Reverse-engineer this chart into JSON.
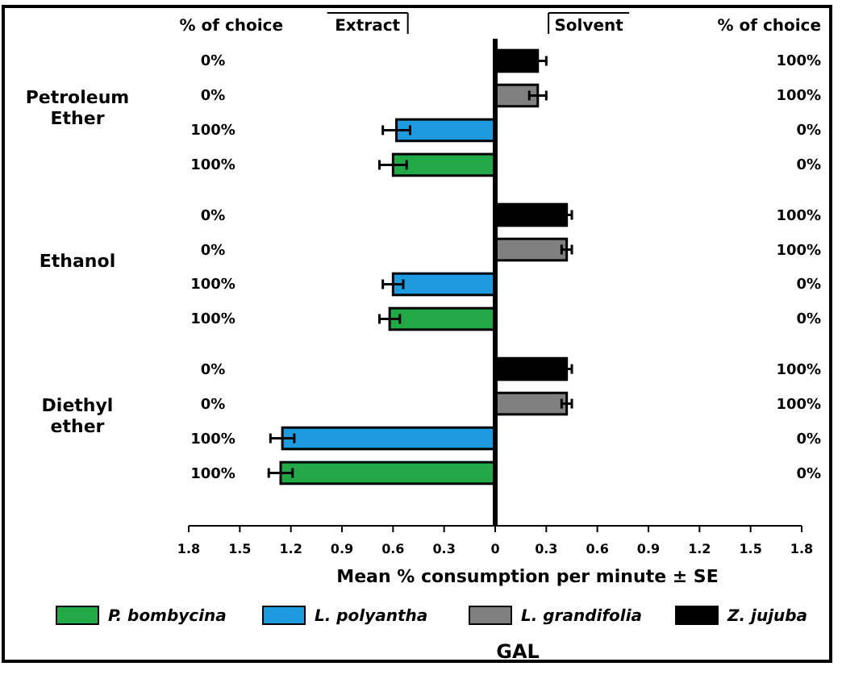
{
  "chart_data": {
    "type": "bar",
    "orientation": "horizontal",
    "title": "GAL",
    "xlabel": "Mean % consumption per minute ± SE",
    "categories": [
      "Petroleum Ether",
      "Ethanol",
      "Diethyl ether"
    ],
    "series": [
      {
        "name": "P. bombycina",
        "color": "#22a846",
        "values": [
          -0.6,
          -0.62,
          -1.26
        ],
        "errors": [
          0.08,
          0.06,
          0.07
        ]
      },
      {
        "name": "L. polyantha",
        "color": "#1e9be0",
        "values": [
          -0.58,
          -0.6,
          -1.25
        ],
        "errors": [
          0.08,
          0.06,
          0.07
        ]
      },
      {
        "name": "L. grandifolia",
        "color": "#808080",
        "values": [
          0.25,
          0.42,
          0.42
        ],
        "errors": [
          0.05,
          0.03,
          0.03
        ]
      },
      {
        "name": "Z. jujuba",
        "color": "#000000",
        "values": [
          0.25,
          0.42,
          0.42
        ],
        "errors": [
          0.05,
          0.03,
          0.03
        ]
      }
    ],
    "xlim": [
      -1.8,
      1.8
    ],
    "xticks": [
      {
        "value": -1.8,
        "label": "1.8"
      },
      {
        "value": -1.5,
        "label": "1.5"
      },
      {
        "value": -1.2,
        "label": "1.2"
      },
      {
        "value": -0.9,
        "label": "0.9"
      },
      {
        "value": -0.6,
        "label": "0.6"
      },
      {
        "value": -0.3,
        "label": "0.3"
      },
      0,
      0.3,
      0.6,
      0.9,
      1.2,
      1.5,
      1.8
    ],
    "legend": "bottom",
    "annotations": [
      "% of choice",
      "Extract",
      "Solvent",
      "% of choice",
      "0%",
      "0%",
      "100%",
      "100%",
      "100%",
      "100%",
      "0%",
      "0%",
      "0%",
      "0%",
      "100%",
      "100%",
      "100%",
      "100%",
      "0%",
      "0%",
      "0%",
      "0%",
      "100%",
      "100%",
      "100%",
      "100%",
      "0%",
      "0%"
    ]
  }
}
